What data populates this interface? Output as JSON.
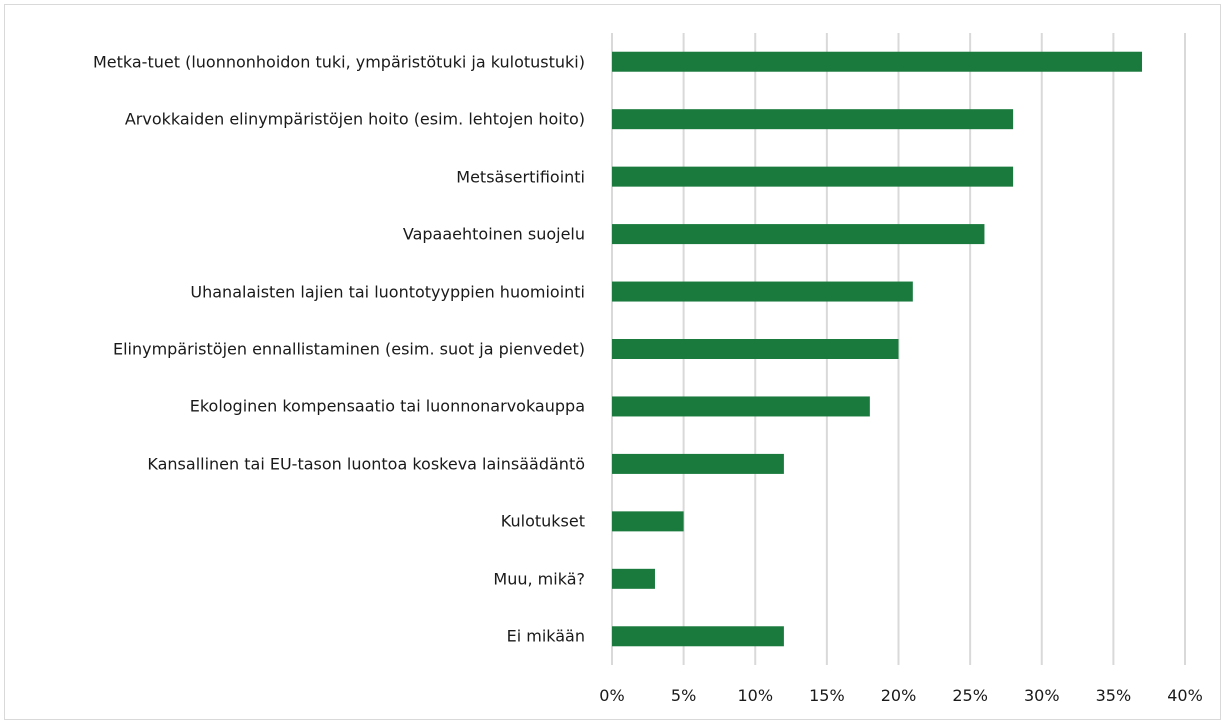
{
  "chart_data": {
    "type": "bar",
    "orientation": "horizontal",
    "categories": [
      "Metka-tuet (luonnonhoidon tuki, ympäristötuki ja kulotustuki)",
      "Arvokkaiden elinympäristöjen hoito (esim. lehtojen hoito)",
      "Metsäsertifiointi",
      "Vapaaehtoinen suojelu",
      "Uhanalaisten lajien tai luontotyyppien huomiointi",
      "Elinympäristöjen ennallistaminen (esim. suot ja pienvedet)",
      "Ekologinen kompensaatio tai luonnonarvokauppa",
      "Kansallinen tai EU-tason luontoa koskeva lainsäädäntö",
      "Kulotukset",
      "Muu, mikä?",
      "Ei mikään"
    ],
    "values": [
      37,
      28,
      28,
      26,
      21,
      20,
      18,
      12,
      5,
      3,
      12
    ],
    "color": "#1a7a3e",
    "xlim": [
      0,
      40
    ],
    "xticks": [
      {
        "value": 0,
        "label": "0%"
      },
      {
        "value": 5,
        "label": "5%"
      },
      {
        "value": 10,
        "label": "10%"
      },
      {
        "value": 15,
        "label": "15%"
      },
      {
        "value": 20,
        "label": "20%"
      },
      {
        "value": 25,
        "label": "25%"
      },
      {
        "value": 30,
        "label": "30%"
      },
      {
        "value": 35,
        "label": "35%"
      },
      {
        "value": 40,
        "label": "40%"
      }
    ],
    "grid": true
  }
}
